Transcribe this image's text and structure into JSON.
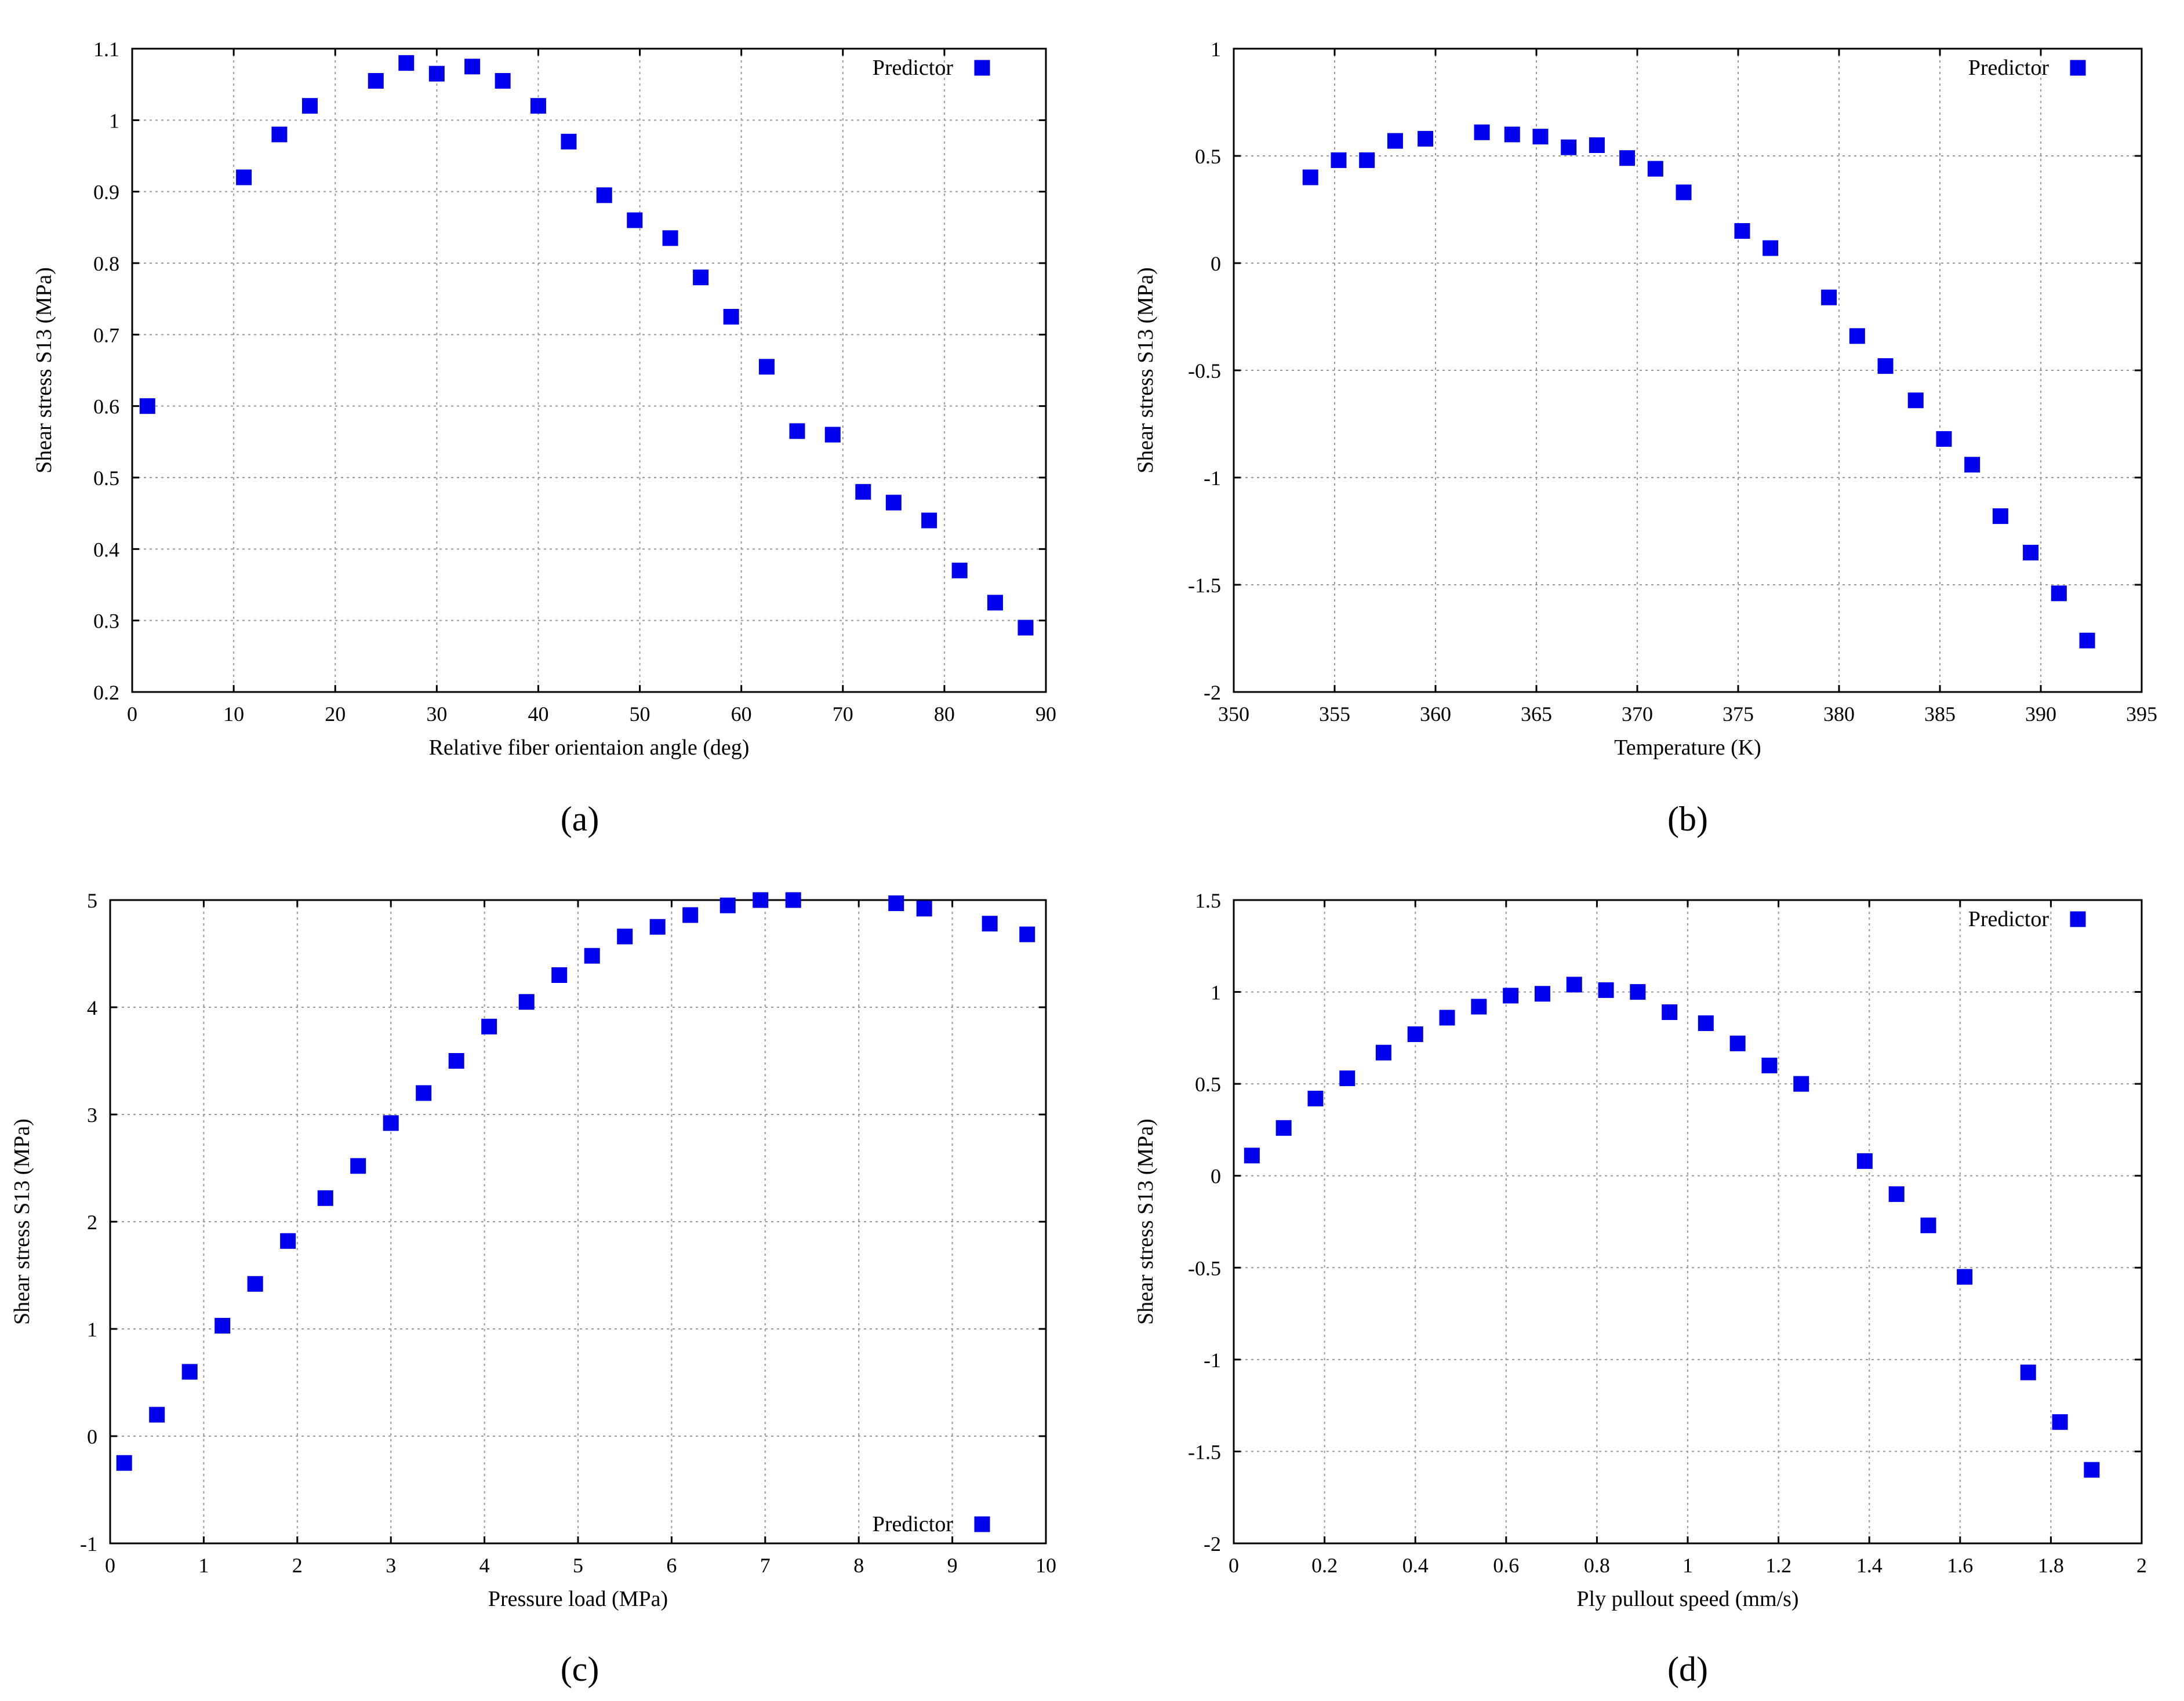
{
  "chart_data": [
    {
      "id": "a",
      "type": "scatter",
      "caption": "(a)",
      "xlabel": "Relative fiber orientaion angle (deg)",
      "ylabel": "Shear stress S13 (MPa)",
      "xlim": [
        0,
        90
      ],
      "ylim": [
        0.2,
        1.1
      ],
      "xticks": [
        0,
        10,
        20,
        30,
        40,
        50,
        60,
        70,
        80,
        90
      ],
      "yticks": [
        0.2,
        0.3,
        0.4,
        0.5,
        0.6,
        0.7,
        0.8,
        0.9,
        1,
        1.1
      ],
      "xtick_labels": [
        "0",
        "10",
        "20",
        "30",
        "40",
        "50",
        "60",
        "70",
        "80",
        "90"
      ],
      "ytick_labels": [
        "0.2",
        "0.3",
        "0.4",
        "0.5",
        "0.6",
        "0.7",
        "0.8",
        "0.9",
        "1",
        "1.1"
      ],
      "grid": true,
      "legend": {
        "label": "Predictor",
        "position": "top-right"
      },
      "marker_color": "#0000ee",
      "series": [
        {
          "name": "Predictor",
          "x": [
            1.5,
            11,
            14.5,
            17.5,
            24,
            27,
            30,
            33.5,
            36.5,
            40,
            43,
            46.5,
            49.5,
            53,
            56,
            59,
            62.5,
            65.5,
            69,
            72,
            75,
            78.5,
            81.5,
            85,
            88
          ],
          "y": [
            0.6,
            0.92,
            0.98,
            1.02,
            1.055,
            1.08,
            1.065,
            1.075,
            1.055,
            1.02,
            0.97,
            0.895,
            0.86,
            0.835,
            0.78,
            0.725,
            0.655,
            0.565,
            0.56,
            0.48,
            0.465,
            0.44,
            0.37,
            0.325,
            0.29
          ]
        }
      ]
    },
    {
      "id": "b",
      "type": "scatter",
      "caption": "(b)",
      "xlabel": "Temperature (K)",
      "ylabel": "Shear stress S13 (MPa)",
      "xlim": [
        350,
        395
      ],
      "ylim": [
        -2,
        1
      ],
      "xticks": [
        350,
        355,
        360,
        365,
        370,
        375,
        380,
        385,
        390,
        395
      ],
      "yticks": [
        -2,
        -1.5,
        -1,
        -0.5,
        0,
        0.5,
        1
      ],
      "xtick_labels": [
        "350",
        "355",
        "360",
        "365",
        "370",
        "375",
        "380",
        "385",
        "390",
        "395"
      ],
      "ytick_labels": [
        "-2",
        "-1.5",
        "-1",
        "-0.5",
        "0",
        "0.5",
        "1"
      ],
      "grid": true,
      "legend": {
        "label": "Predictor",
        "position": "top-right"
      },
      "marker_color": "#0000ee",
      "series": [
        {
          "name": "Predictor",
          "x": [
            353.8,
            355.2,
            356.6,
            358,
            359.5,
            362.3,
            363.8,
            365.2,
            366.6,
            368,
            369.5,
            370.9,
            372.3,
            375.2,
            376.6,
            379.5,
            380.9,
            382.3,
            383.8,
            385.2,
            386.6,
            388,
            389.5,
            390.9,
            392.3
          ],
          "y": [
            0.4,
            0.48,
            0.48,
            0.57,
            0.58,
            0.61,
            0.6,
            0.59,
            0.54,
            0.55,
            0.49,
            0.44,
            0.33,
            0.15,
            0.07,
            -0.16,
            -0.34,
            -0.48,
            -0.64,
            -0.82,
            -0.94,
            -1.18,
            -1.35,
            -1.54,
            -1.76
          ]
        }
      ]
    },
    {
      "id": "c",
      "type": "scatter",
      "caption": "(c)",
      "xlabel": "Pressure load (MPa)",
      "ylabel": "Shear stress S13 (MPa)",
      "xlim": [
        0,
        10
      ],
      "ylim": [
        -1,
        5
      ],
      "xticks": [
        0,
        1,
        2,
        3,
        4,
        5,
        6,
        7,
        8,
        9,
        10
      ],
      "yticks": [
        -1,
        0,
        1,
        2,
        3,
        4,
        5
      ],
      "xtick_labels": [
        "0",
        "1",
        "2",
        "3",
        "4",
        "5",
        "6",
        "7",
        "8",
        "9",
        "10"
      ],
      "ytick_labels": [
        "-1",
        "0",
        "1",
        "2",
        "3",
        "4",
        "5"
      ],
      "grid": true,
      "legend": {
        "label": "Predictor",
        "position": "bottom-right"
      },
      "marker_color": "#0000ee",
      "series": [
        {
          "name": "Predictor",
          "x": [
            0.15,
            0.5,
            0.85,
            1.2,
            1.55,
            1.9,
            2.3,
            2.65,
            3.0,
            3.35,
            3.7,
            4.05,
            4.45,
            4.8,
            5.15,
            5.5,
            5.85,
            6.2,
            6.6,
            6.95,
            7.3,
            8.4,
            8.7,
            9.4,
            9.8
          ],
          "y": [
            -0.25,
            0.2,
            0.6,
            1.03,
            1.42,
            1.82,
            2.22,
            2.52,
            2.92,
            3.2,
            3.5,
            3.82,
            4.05,
            4.3,
            4.48,
            4.66,
            4.75,
            4.86,
            4.95,
            5.0,
            5.0,
            4.97,
            4.92,
            4.78,
            4.68
          ]
        }
      ]
    },
    {
      "id": "d",
      "type": "scatter",
      "caption": "(d)",
      "xlabel": "Ply pullout speed (mm/s)",
      "ylabel": "Shear stress S13 (MPa)",
      "xlim": [
        0,
        2
      ],
      "ylim": [
        -2,
        1.5
      ],
      "xticks": [
        0,
        0.2,
        0.4,
        0.6,
        0.8,
        1,
        1.2,
        1.4,
        1.6,
        1.8,
        2
      ],
      "yticks": [
        -2,
        -1.5,
        -1,
        -0.5,
        0,
        0.5,
        1,
        1.5
      ],
      "xtick_labels": [
        "0",
        "0.2",
        "0.4",
        "0.6",
        "0.8",
        "1",
        "1.2",
        "1.4",
        "1.6",
        "1.8",
        "2"
      ],
      "ytick_labels": [
        "-2",
        "-1.5",
        "-1",
        "-0.5",
        "0",
        "0.5",
        "1",
        "1.5"
      ],
      "grid": true,
      "legend": {
        "label": "Predictor",
        "position": "top-right"
      },
      "marker_color": "#0000ee",
      "series": [
        {
          "name": "Predictor",
          "x": [
            0.04,
            0.11,
            0.18,
            0.25,
            0.33,
            0.4,
            0.47,
            0.54,
            0.61,
            0.68,
            0.75,
            0.82,
            0.89,
            0.96,
            1.04,
            1.11,
            1.18,
            1.25,
            1.39,
            1.46,
            1.53,
            1.61,
            1.75,
            1.82,
            1.89
          ],
          "y": [
            0.11,
            0.26,
            0.42,
            0.53,
            0.67,
            0.77,
            0.86,
            0.92,
            0.98,
            0.99,
            1.04,
            1.01,
            1.0,
            0.89,
            0.83,
            0.72,
            0.6,
            0.5,
            0.08,
            -0.1,
            -0.27,
            -0.55,
            -1.07,
            -1.34,
            -1.6
          ]
        }
      ]
    }
  ]
}
